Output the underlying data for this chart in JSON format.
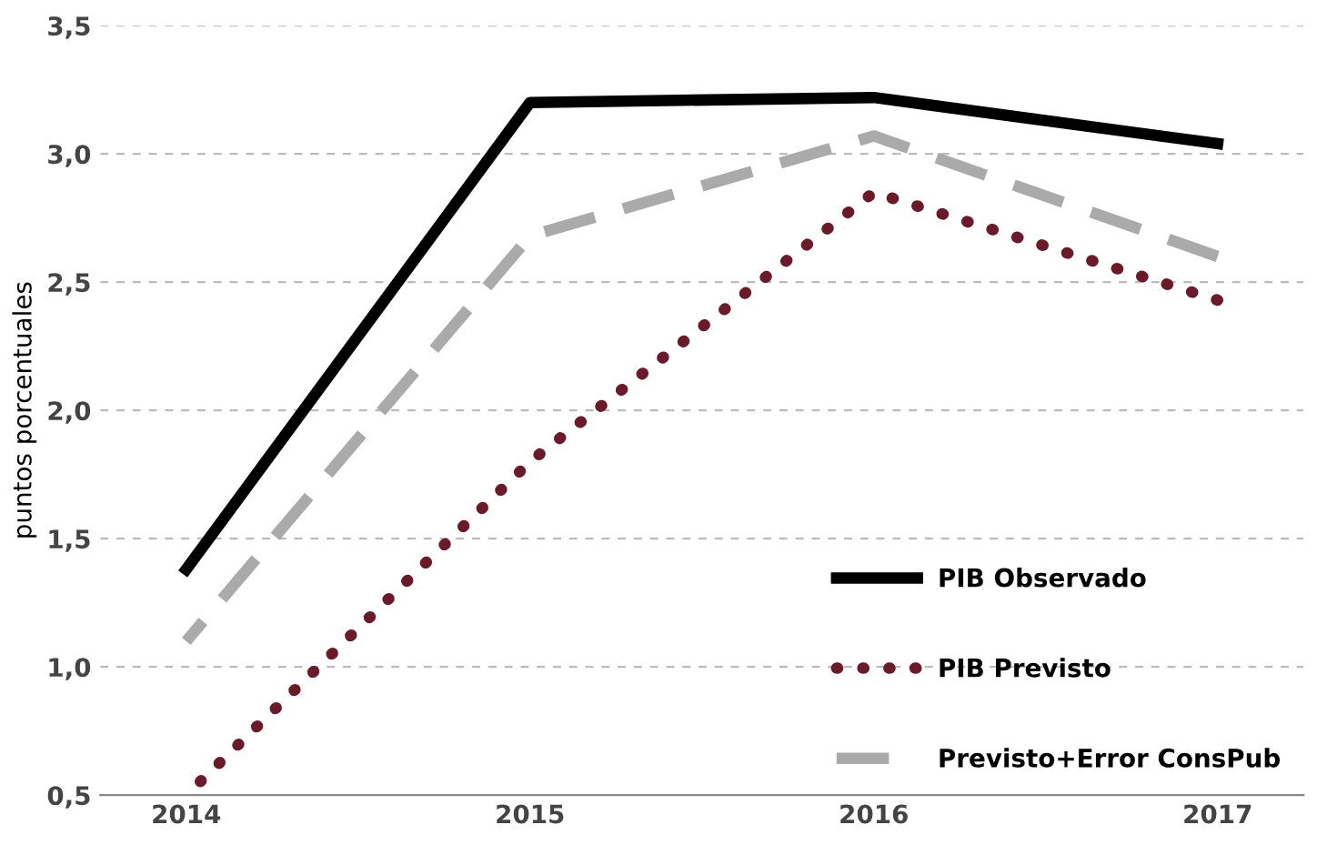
{
  "chart_data": {
    "type": "line",
    "ylabel": "puntos porcentuales",
    "categories": [
      "2014",
      "2015",
      "2016",
      "2017"
    ],
    "series": [
      {
        "name": "PIB Observado",
        "color": "#000000",
        "values": [
          1.38,
          3.2,
          3.22,
          3.04
        ],
        "line_style": "solid"
      },
      {
        "name": "PIB Previsto",
        "color": "#6b1a2a",
        "values": [
          0.5,
          1.8,
          2.85,
          2.43
        ],
        "line_style": "dotted"
      },
      {
        "name": "Previsto+Error ConsPub",
        "color": "#aaaaaa",
        "values": [
          1.1,
          2.68,
          3.07,
          2.6
        ],
        "line_style": "dashed"
      }
    ],
    "ylim": [
      0.5,
      3.5
    ],
    "yticks": [
      {
        "value": 0.5,
        "label": "0,5"
      },
      {
        "value": 1.0,
        "label": "1,0"
      },
      {
        "value": 1.5,
        "label": "1,5"
      },
      {
        "value": 2.0,
        "label": "2,0"
      },
      {
        "value": 2.5,
        "label": "2,5"
      },
      {
        "value": 3.0,
        "label": "3,0"
      },
      {
        "value": 3.5,
        "label": "3,5"
      }
    ],
    "grid": "y",
    "legend": "bottom right",
    "marker": "none"
  }
}
